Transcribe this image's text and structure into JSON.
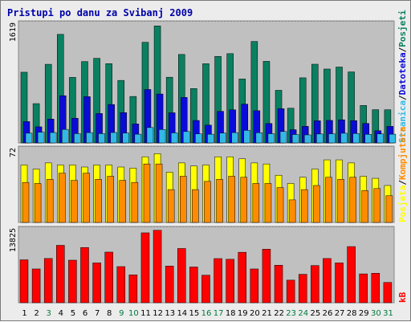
{
  "chart_data": {
    "type": "bar",
    "title": "Pristupi po danu za Svibanj 2009",
    "colors": {
      "title": "#0000aa",
      "panel_bg": "#c0c0c0",
      "page_bg": "#ececec",
      "weekday_label": "#000000",
      "weekend_label": "#007a3d",
      "stranica": "#0a8060",
      "datoteka": "#0b0bd8",
      "posjeti": "#33b9e6",
      "kompjutera": "#ff8c00",
      "posjeta": "#ffff00",
      "kb": "#ff0000"
    },
    "categories": [
      "1",
      "2",
      "3",
      "4",
      "5",
      "6",
      "7",
      "8",
      "9",
      "10",
      "11",
      "12",
      "13",
      "14",
      "15",
      "16",
      "17",
      "18",
      "19",
      "20",
      "21",
      "22",
      "23",
      "24",
      "25",
      "26",
      "27",
      "28",
      "29",
      "30",
      "31"
    ],
    "weekend_days": [
      "3",
      "9",
      "10",
      "16",
      "17",
      "23",
      "24",
      "30",
      "31"
    ],
    "panels": [
      {
        "id": "top",
        "ytick": "1619",
        "ylim": [
          0,
          1619
        ],
        "legend": [
          {
            "label": "Stranica",
            "color": "#33b9e6"
          },
          {
            "label": "Datoteka",
            "color": "#0b0bd8"
          },
          {
            "label": "Posjeti",
            "color": "#0a8060"
          }
        ],
        "series": [
          {
            "name": "Stranica",
            "color": "#0a8060",
            "values": [
              957,
              532,
              1064,
              1469,
              887,
              1101,
              1145,
              1073,
              846,
              629,
              1362,
              1583,
              889,
              1197,
              736,
              1072,
              1171,
              1208,
              865,
              1373,
              1104,
              712,
              470,
              881,
              1065,
              1000,
              1027,
              961,
              507,
              450,
              449
            ]
          },
          {
            "name": "Datoteka",
            "color": "#0b0bd8",
            "values": [
              289,
              218,
              323,
              639,
              334,
              626,
              398,
              520,
              410,
              257,
              723,
              662,
              408,
              616,
              304,
              241,
              428,
              448,
              525,
              436,
              263,
              463,
              179,
              225,
              300,
              305,
              313,
              302,
              264,
              165,
              224
            ]
          },
          {
            "name": "Posjeti",
            "color": "#33b9e6",
            "values": [
              132,
              145,
              141,
              183,
              126,
              140,
              126,
              141,
              134,
              118,
              208,
              182,
              136,
              154,
              123,
              118,
              134,
              140,
              170,
              138,
              125,
              155,
              114,
              109,
              121,
              124,
              131,
              128,
              116,
              122,
              118
            ]
          }
        ]
      },
      {
        "id": "middle",
        "ytick": "72",
        "ylim": [
          0,
          72
        ],
        "legend": [
          {
            "label": "Posjeta",
            "color": "#ffff00"
          },
          {
            "label": "Kompjutera",
            "color": "#ff8c00"
          }
        ],
        "series": [
          {
            "name": "Posjeta",
            "color": "#ffff00",
            "values": [
              56,
              52,
              58,
              56,
              56,
              54,
              56,
              56,
              54,
              53,
              64,
              67,
              49,
              58,
              55,
              56,
              64,
              64,
              62,
              58,
              57,
              46,
              38,
              44,
              52,
              61,
              61,
              58,
              45,
              43,
              36
            ]
          },
          {
            "name": "Kompjutera",
            "color": "#ff8c00",
            "values": [
              39,
              38,
              42,
              48,
              41,
              48,
              42,
              45,
              41,
              39,
              57,
              57,
              32,
              45,
              32,
              40,
              42,
              45,
              44,
              38,
              38,
              34,
              22,
              32,
              36,
              44,
              42,
              44,
              31,
              33,
              26
            ]
          }
        ]
      },
      {
        "id": "bottom",
        "ytick": "13825",
        "ylim": [
          0,
          13825
        ],
        "legend": [
          {
            "label": "kB",
            "color": "#ff0000"
          }
        ],
        "series": [
          {
            "name": "kB",
            "color": "#ff0000",
            "values": [
              8034,
              6318,
              8279,
              10744,
              7962,
              10335,
              7452,
              9472,
              6762,
              5220,
              13080,
              13557,
              6861,
              10148,
              6688,
              5156,
              8265,
              8132,
              9444,
              6318,
              10017,
              7019,
              4227,
              5322,
              6961,
              8279,
              7452,
              10508,
              5395,
              5517,
              3800
            ]
          }
        ]
      }
    ]
  }
}
